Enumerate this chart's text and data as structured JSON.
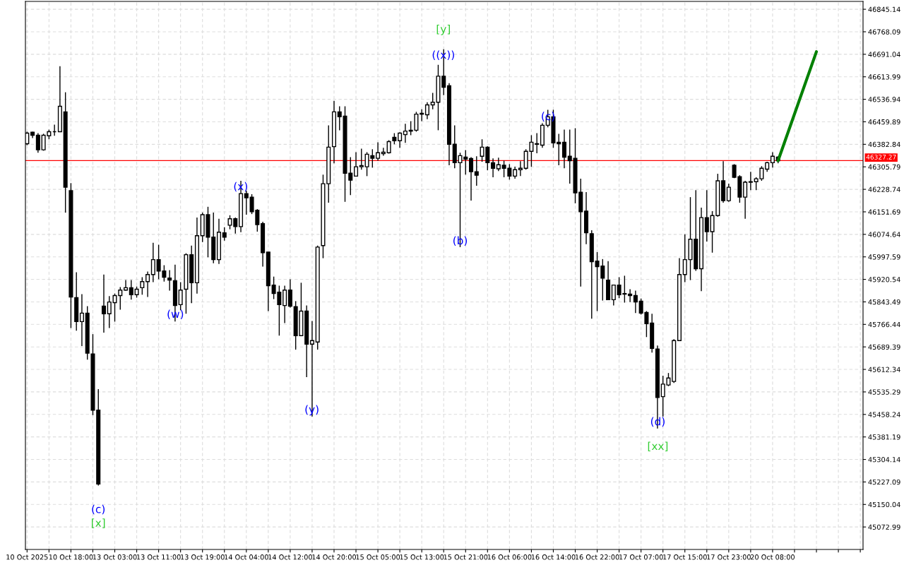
{
  "chart_data": {
    "type": "candlestick",
    "categories": [
      "10 Oct 2025",
      null,
      null,
      null,
      null,
      null,
      null,
      null,
      "10 Oct 18:00",
      null,
      null,
      null,
      null,
      null,
      null,
      null,
      "13 Oct 03:00",
      null,
      null,
      null,
      null,
      null,
      null,
      null,
      "13 Oct 11:00",
      null,
      null,
      null,
      null,
      null,
      null,
      null,
      "13 Oct 19:00",
      null,
      null,
      null,
      null,
      null,
      null,
      null,
      "14 Oct 04:00",
      null,
      null,
      null,
      null,
      null,
      null,
      null,
      "14 Oct 12:00",
      null,
      null,
      null,
      null,
      null,
      null,
      null,
      "14 Oct 20:00",
      null,
      null,
      null,
      null,
      null,
      null,
      null,
      "15 Oct 05:00",
      null,
      null,
      null,
      null,
      null,
      null,
      null,
      "15 Oct 13:00",
      null,
      null,
      null,
      null,
      null,
      null,
      null,
      "15 Oct 21:00",
      null,
      null,
      null,
      null,
      null,
      null,
      null,
      "16 Oct 06:00",
      null,
      null,
      null,
      null,
      null,
      null,
      null,
      "16 Oct 14:00",
      null,
      null,
      null,
      null,
      null,
      null,
      null,
      "16 Oct 22:00",
      null,
      null,
      null,
      null,
      null,
      null,
      null,
      "17 Oct 07:00",
      null,
      null,
      null,
      null,
      null,
      null,
      null,
      "17 Oct 15:00",
      null,
      null,
      null,
      null,
      null,
      null,
      null,
      "17 Oct 23:00",
      null,
      null,
      null,
      null,
      null,
      null,
      null,
      "20 Oct 08:00",
      null,
      null,
      null,
      null,
      null,
      null,
      null,
      null,
      null,
      null,
      null,
      null,
      null,
      null,
      null,
      null
    ],
    "ohlc": [
      [
        46385,
        46426,
        46380,
        46421
      ],
      [
        46424,
        46426,
        46404,
        46414
      ],
      [
        46414,
        46421,
        46354,
        46364
      ],
      [
        46364,
        46419,
        46361,
        46414
      ],
      [
        46412,
        46433,
        46400,
        46426
      ],
      [
        46426,
        46450,
        46412,
        46426
      ],
      [
        46426,
        46650,
        46426,
        46513
      ],
      [
        46494,
        46561,
        46149,
        46236
      ],
      [
        46224,
        46250,
        45754,
        45860
      ],
      [
        45858,
        45945,
        45745,
        45776
      ],
      [
        45776,
        45870,
        45692,
        45805
      ],
      [
        45805,
        45829,
        45646,
        45668
      ],
      [
        45665,
        45733,
        45456,
        45473
      ],
      [
        45473,
        45545,
        45215,
        45220
      ],
      [
        45829,
        45937,
        45738,
        45803
      ],
      [
        45803,
        45863,
        45754,
        45843
      ],
      [
        45841,
        45872,
        45776,
        45865
      ],
      [
        45865,
        45894,
        45817,
        45884
      ],
      [
        45884,
        45918,
        45882,
        45892
      ],
      [
        45892,
        45918,
        45851,
        45868
      ],
      [
        45868,
        45896,
        45858,
        45887
      ],
      [
        45892,
        45928,
        45868,
        45913
      ],
      [
        45913,
        45947,
        45860,
        45937
      ],
      [
        45937,
        46046,
        45911,
        45988
      ],
      [
        45988,
        46039,
        45921,
        45949
      ],
      [
        45949,
        45969,
        45913,
        45928
      ],
      [
        45925,
        45952,
        45882,
        45918
      ],
      [
        45916,
        45971,
        45776,
        45831
      ],
      [
        45834,
        45911,
        45815,
        45884
      ],
      [
        45887,
        46010,
        45803,
        46005
      ],
      [
        46005,
        46036,
        45839,
        45909
      ],
      [
        45909,
        46132,
        45872,
        46070
      ],
      [
        46070,
        46149,
        46048,
        46142
      ],
      [
        46142,
        46169,
        45996,
        46065
      ],
      [
        46065,
        46149,
        45976,
        45988
      ],
      [
        45988,
        46128,
        45973,
        46082
      ],
      [
        46080,
        46099,
        46053,
        46065
      ],
      [
        46106,
        46140,
        46092,
        46128
      ],
      [
        46128,
        46132,
        46077,
        46101
      ],
      [
        46101,
        46258,
        46082,
        46214
      ],
      [
        46214,
        46224,
        46142,
        46200
      ],
      [
        46202,
        46212,
        46144,
        46152
      ],
      [
        46157,
        46161,
        46084,
        46108
      ],
      [
        46111,
        46118,
        45964,
        46012
      ],
      [
        46014,
        46014,
        45812,
        45899
      ],
      [
        45901,
        45930,
        45853,
        45872
      ],
      [
        45877,
        45899,
        45728,
        45834
      ],
      [
        45831,
        45899,
        45771,
        45884
      ],
      [
        45884,
        45921,
        45824,
        45829
      ],
      [
        45827,
        45846,
        45680,
        45728
      ],
      [
        45728,
        45909,
        45728,
        45812
      ],
      [
        45812,
        45831,
        45586,
        45699
      ],
      [
        45699,
        45778,
        45451,
        45711
      ],
      [
        45706,
        46036,
        45680,
        46031
      ],
      [
        46036,
        46279,
        45993,
        46248
      ],
      [
        46248,
        46448,
        46183,
        46373
      ],
      [
        46375,
        46532,
        46318,
        46494
      ],
      [
        46494,
        46513,
        46431,
        46477
      ],
      [
        46479,
        46513,
        46186,
        46284
      ],
      [
        46284,
        46339,
        46209,
        46260
      ],
      [
        46274,
        46356,
        46274,
        46306
      ],
      [
        46306,
        46368,
        46296,
        46310
      ],
      [
        46306,
        46356,
        46274,
        46349
      ],
      [
        46344,
        46366,
        46303,
        46335
      ],
      [
        46335,
        46390,
        46327,
        46354
      ],
      [
        46351,
        46371,
        46344,
        46356
      ],
      [
        46354,
        46397,
        46351,
        46392
      ],
      [
        46407,
        46421,
        46383,
        46395
      ],
      [
        46395,
        46424,
        46371,
        46421
      ],
      [
        46416,
        46453,
        46388,
        46428
      ],
      [
        46428,
        46462,
        46414,
        46431
      ],
      [
        46431,
        46494,
        46426,
        46486
      ],
      [
        46486,
        46503,
        46462,
        46489
      ],
      [
        46484,
        46527,
        46469,
        46518
      ],
      [
        46518,
        46559,
        46503,
        46527
      ],
      [
        46527,
        46655,
        46431,
        46616
      ],
      [
        46616,
        46708,
        46551,
        46578
      ],
      [
        46583,
        46592,
        46311,
        46383
      ],
      [
        46383,
        46448,
        46301,
        46320
      ],
      [
        46320,
        46354,
        46031,
        46344
      ],
      [
        46339,
        46363,
        46279,
        46332
      ],
      [
        46334,
        46339,
        46190,
        46289
      ],
      [
        46289,
        46342,
        46241,
        46277
      ],
      [
        46342,
        46400,
        46323,
        46373
      ],
      [
        46373,
        46376,
        46294,
        46320
      ],
      [
        46320,
        46335,
        46270,
        46301
      ],
      [
        46299,
        46337,
        46291,
        46313
      ],
      [
        46311,
        46327,
        46270,
        46301
      ],
      [
        46301,
        46315,
        46262,
        46274
      ],
      [
        46274,
        46306,
        46265,
        46296
      ],
      [
        46296,
        46325,
        46274,
        46301
      ],
      [
        46301,
        46366,
        46296,
        46359
      ],
      [
        46359,
        46414,
        46306,
        46390
      ],
      [
        46383,
        46421,
        46352,
        46385
      ],
      [
        46380,
        46455,
        46371,
        46448
      ],
      [
        46448,
        46501,
        46441,
        46477
      ],
      [
        46477,
        46501,
        46371,
        46388
      ],
      [
        46390,
        46419,
        46311,
        46385
      ],
      [
        46390,
        46433,
        46301,
        46339
      ],
      [
        46342,
        46433,
        46248,
        46327
      ],
      [
        46335,
        46438,
        46181,
        46217
      ],
      [
        46219,
        46265,
        45896,
        46152
      ],
      [
        46154,
        46219,
        46041,
        46080
      ],
      [
        46077,
        46089,
        45786,
        45981
      ],
      [
        45983,
        46014,
        45812,
        45964
      ],
      [
        45966,
        45990,
        45848,
        45925
      ],
      [
        45918,
        45983,
        45851,
        45851
      ],
      [
        45851,
        45901,
        45831,
        45901
      ],
      [
        45901,
        45928,
        45856,
        45868
      ],
      [
        45872,
        45933,
        45841,
        45870
      ],
      [
        45870,
        45887,
        45843,
        45865
      ],
      [
        45865,
        45882,
        45805,
        45843
      ],
      [
        45846,
        45855,
        45800,
        45805
      ],
      [
        45807,
        45812,
        45723,
        45769
      ],
      [
        45771,
        45803,
        45670,
        45684
      ],
      [
        45682,
        45694,
        45410,
        45516
      ],
      [
        45519,
        45591,
        45451,
        45562
      ],
      [
        45559,
        45600,
        45555,
        45583
      ],
      [
        45571,
        45716,
        45566,
        45711
      ],
      [
        45711,
        45993,
        45709,
        45937
      ],
      [
        45937,
        46075,
        45911,
        45988
      ],
      [
        45988,
        46202,
        45918,
        46058
      ],
      [
        46058,
        46226,
        45950,
        45957
      ],
      [
        45957,
        46166,
        45880,
        46132
      ],
      [
        46132,
        46226,
        46050,
        46084
      ],
      [
        46084,
        46154,
        46012,
        46139
      ],
      [
        46139,
        46282,
        46135,
        46258
      ],
      [
        46258,
        46325,
        46183,
        46190
      ],
      [
        46190,
        46248,
        46186,
        46236
      ],
      [
        46311,
        46315,
        46267,
        46270
      ],
      [
        46272,
        46277,
        46183,
        46202
      ],
      [
        46202,
        46258,
        46128,
        46253
      ],
      [
        46253,
        46289,
        46226,
        46255
      ],
      [
        46255,
        46270,
        46226,
        46265
      ],
      [
        46265,
        46308,
        46258,
        46301
      ],
      [
        46298,
        46323,
        46289,
        46320
      ],
      [
        46320,
        46356,
        46303,
        46342
      ],
      [
        46339,
        46342,
        46318,
        46327
      ],
      null,
      null,
      null,
      null,
      null,
      null,
      null,
      null,
      null,
      null,
      null,
      null,
      null,
      null,
      null
    ],
    "series": [
      {
        "type": "line",
        "values": [
          null,
          null,
          null,
          null,
          null,
          null,
          null,
          null,
          null,
          null,
          null,
          null,
          null,
          null,
          null,
          null,
          null,
          null,
          null,
          null,
          null,
          null,
          null,
          null,
          null,
          null,
          null,
          null,
          null,
          null,
          null,
          null,
          null,
          null,
          null,
          null,
          null,
          null,
          null,
          null,
          null,
          null,
          null,
          null,
          null,
          null,
          null,
          null,
          null,
          null,
          null,
          null,
          null,
          null,
          null,
          null,
          null,
          null,
          null,
          null,
          null,
          null,
          null,
          null,
          null,
          null,
          null,
          null,
          null,
          null,
          null,
          null,
          null,
          null,
          null,
          null,
          null,
          null,
          null,
          null,
          null,
          null,
          null,
          null,
          null,
          null,
          null,
          null,
          null,
          null,
          null,
          null,
          null,
          null,
          null,
          null,
          null,
          null,
          null,
          null,
          null,
          null,
          null,
          null,
          null,
          null,
          null,
          null,
          null,
          null,
          null,
          null,
          null,
          null,
          null,
          null,
          null,
          null,
          null,
          null,
          null,
          null,
          null,
          null,
          null,
          null,
          null,
          null,
          null,
          null,
          null,
          null,
          null,
          null,
          null,
          null,
          null,
          46327,
          null,
          null,
          null,
          null,
          null,
          null,
          46700,
          null,
          null,
          null,
          null,
          null,
          null,
          null,
          null
        ],
        "color": "#008000"
      }
    ],
    "ylim": [
      44996,
      46872
    ],
    "yticks": [
      {
        "value": 45072.99,
        "label": "45072.99"
      },
      {
        "value": 45150.04,
        "label": "45150.04"
      },
      {
        "value": 45227.09,
        "label": "45227.09"
      },
      {
        "value": 45304.14,
        "label": "45304.14"
      },
      {
        "value": 45381.19,
        "label": "45381.19"
      },
      {
        "value": 45458.24,
        "label": "45458.24"
      },
      {
        "value": 45535.29,
        "label": "45535.29"
      },
      {
        "value": 45612.34,
        "label": "45612.34"
      },
      {
        "value": 45689.39,
        "label": "45689.39"
      },
      {
        "value": 45766.44,
        "label": "45766.44"
      },
      {
        "value": 45843.49,
        "label": "45843.49"
      },
      {
        "value": 45920.54,
        "label": "45920.54"
      },
      {
        "value": 45997.59,
        "label": "45997.59"
      },
      {
        "value": 46074.64,
        "label": "46074.64"
      },
      {
        "value": 46151.69,
        "label": "46151.69"
      },
      {
        "value": 46228.74,
        "label": "46228.74"
      },
      {
        "value": 46305.79,
        "label": "46305.79"
      },
      {
        "value": 46382.84,
        "label": "46382.84"
      },
      {
        "value": 46459.89,
        "label": "46459.89"
      },
      {
        "value": 46536.94,
        "label": "46536.94"
      },
      {
        "value": 46613.99,
        "label": "46613.99"
      },
      {
        "value": 46691.04,
        "label": "46691.04"
      },
      {
        "value": 46768.09,
        "label": "46768.09"
      },
      {
        "value": 46845.14,
        "label": "46845.14"
      }
    ],
    "grid": true,
    "ref_lines": [
      {
        "axis": "y",
        "value": 46327.27,
        "label": "46327.27",
        "color": "#ff0000"
      }
    ],
    "annotations": [
      "(c)",
      "[x]",
      "(w)",
      "(x)",
      "(y)",
      "[y]",
      "((x))",
      "(b)",
      "(c)",
      "(d)",
      "[xx]"
    ]
  }
}
